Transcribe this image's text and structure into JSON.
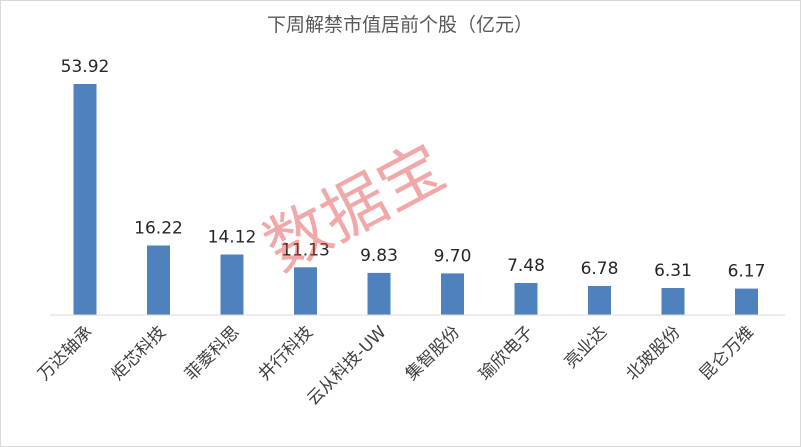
{
  "chart_data": {
    "type": "bar",
    "title": "下周解禁市值居前个股（亿元）",
    "categories": [
      "万达轴承",
      "炬芯科技",
      "菲菱科思",
      "井行科技",
      "云从科技-UW",
      "集智股份",
      "瑜欣电子",
      "亮业达",
      "北玻股份",
      "昆仑万维"
    ],
    "values": [
      53.92,
      16.22,
      14.12,
      11.13,
      9.83,
      9.7,
      7.48,
      6.78,
      6.31,
      6.17
    ],
    "value_labels": [
      "53.92",
      "16.22",
      "14.12",
      "11.13",
      "9.83",
      "9.70",
      "7.48",
      "6.78",
      "6.31",
      "6.17"
    ],
    "ylim": [
      0,
      60
    ],
    "grid": false,
    "legend": "none",
    "bar_color": "#4f81bd"
  },
  "watermark": "数据宝"
}
